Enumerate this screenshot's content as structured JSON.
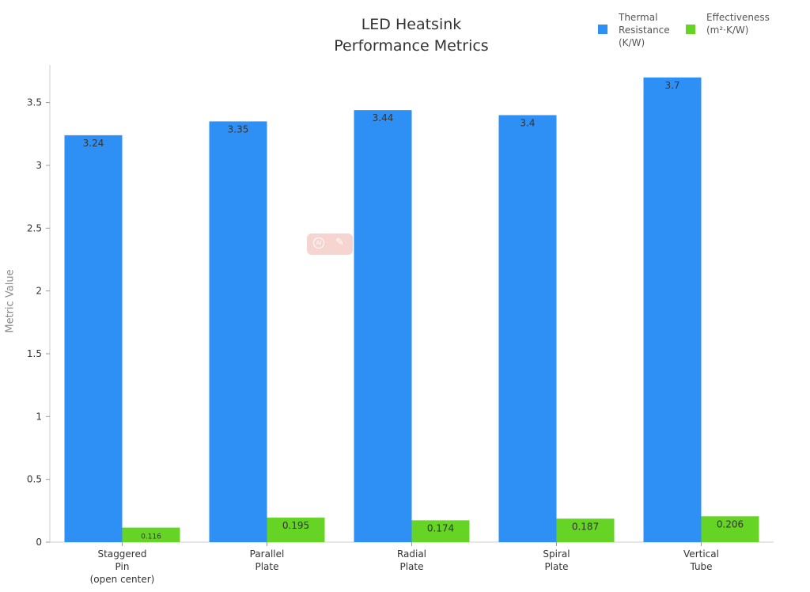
{
  "chart_data": {
    "type": "bar",
    "title": "LED Heatsink\nPerformance Metrics",
    "ylabel": "Metric Value",
    "xlabel": "",
    "ylim": [
      0,
      3.8
    ],
    "yticks": [
      "0",
      "0.5",
      "1",
      "1.5",
      "2",
      "2.5",
      "3",
      "3.5"
    ],
    "categories": [
      "Staggered\nPin\n(open center)",
      "Parallel\nPlate",
      "Radial\nPlate",
      "Spiral\nPlate",
      "Vertical\nTube"
    ],
    "series": [
      {
        "name": "Thermal\nResistance\n(K/W)",
        "values": [
          3.24,
          3.35,
          3.44,
          3.4,
          3.7
        ],
        "labels": [
          "3.24",
          "3.35",
          "3.44",
          "3.4",
          "3.7"
        ],
        "color": "#2e8ff5"
      },
      {
        "name": "Effectiveness\n(m²·K/W)",
        "values": [
          0.116,
          0.195,
          0.174,
          0.187,
          0.206
        ],
        "labels": [
          "0.116",
          "0.195",
          "0.174",
          "0.187",
          "0.206"
        ],
        "color": "#66d424"
      }
    ],
    "legend": "top-right",
    "grid": false
  },
  "overlay_badge": {
    "icon": "ai-icon",
    "icon2": "edit-icon",
    "text": "AI"
  }
}
